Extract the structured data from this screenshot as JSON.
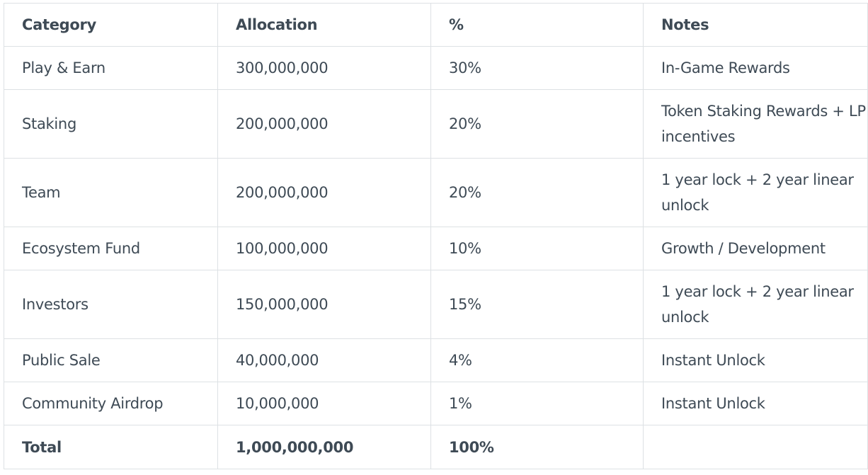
{
  "table": {
    "headers": [
      "Category",
      "Allocation",
      "%",
      "Notes"
    ],
    "rows": [
      {
        "category": "Play & Earn",
        "allocation": "300,000,000",
        "percent": "30%",
        "notes": "In-Game Rewards"
      },
      {
        "category": "Staking",
        "allocation": "200,000,000",
        "percent": "20%",
        "notes": "Token Staking Rewards + LP incentives"
      },
      {
        "category": "Team",
        "allocation": "200,000,000",
        "percent": "20%",
        "notes": "1 year lock + 2 year linear unlock"
      },
      {
        "category": "Ecosystem Fund",
        "allocation": "100,000,000",
        "percent": "10%",
        "notes": "Growth / Development"
      },
      {
        "category": "Investors",
        "allocation": "150,000,000",
        "percent": "15%",
        "notes": "1 year lock + 2 year linear unlock"
      },
      {
        "category": "Public Sale",
        "allocation": "40,000,000",
        "percent": "4%",
        "notes": "Instant Unlock"
      },
      {
        "category": "Community Airdrop",
        "allocation": "10,000,000",
        "percent": "1%",
        "notes": "Instant Unlock"
      }
    ],
    "total": {
      "category": "Total",
      "allocation": "1,000,000,000",
      "percent": "100%",
      "notes": ""
    }
  }
}
